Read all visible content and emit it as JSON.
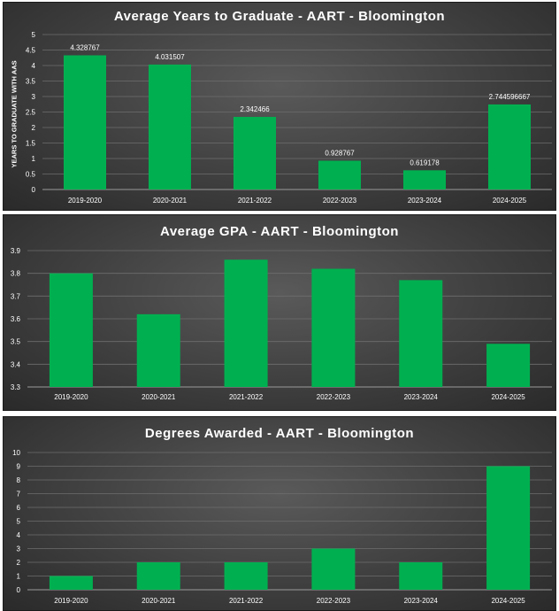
{
  "chart_data": [
    {
      "type": "bar",
      "title": "Average Years to Graduate - AART - Bloomington",
      "ylabel": "YEARS TO GRADUATE WITH AAS",
      "xlabel": "",
      "categories": [
        "2019-2020",
        "2020-2021",
        "2021-2022",
        "2022-2023",
        "2023-2024",
        "2024-2025"
      ],
      "values": [
        4.328767,
        4.031507,
        2.342466,
        0.928767,
        0.619178,
        2.744596667
      ],
      "data_labels": [
        "4.328767",
        "4.031507",
        "2.342466",
        "0.928767",
        "0.619178",
        "2.744596667"
      ],
      "ylim": [
        0,
        5
      ],
      "yticks": [
        "0",
        "0.5",
        "1",
        "1.5",
        "2",
        "2.5",
        "3",
        "3.5",
        "4",
        "4.5",
        "5"
      ],
      "grid": true,
      "bar_color": "#00b050"
    },
    {
      "type": "bar",
      "title": "Average GPA - AART - Bloomington",
      "xlabel": "",
      "ylabel": "",
      "categories": [
        "2019-2020",
        "2020-2021",
        "2021-2022",
        "2022-2023",
        "2023-2024",
        "2024-2025"
      ],
      "values": [
        3.8,
        3.62,
        3.86,
        3.82,
        3.77,
        3.49
      ],
      "ylim": [
        3.3,
        3.9
      ],
      "yticks": [
        "3.3",
        "3.4",
        "3.5",
        "3.6",
        "3.7",
        "3.8",
        "3.9"
      ],
      "grid": true,
      "bar_color": "#00b050"
    },
    {
      "type": "bar",
      "title": "Degrees Awarded - AART - Bloomington",
      "xlabel": "",
      "ylabel": "",
      "categories": [
        "2019-2020",
        "2020-2021",
        "2021-2022",
        "2022-2023",
        "2023-2024",
        "2024-2025"
      ],
      "values": [
        1,
        2,
        2,
        3,
        2,
        9
      ],
      "ylim": [
        0,
        10
      ],
      "yticks": [
        "0",
        "1",
        "2",
        "3",
        "4",
        "5",
        "6",
        "7",
        "8",
        "9",
        "10"
      ],
      "grid": true,
      "bar_color": "#00b050"
    }
  ]
}
